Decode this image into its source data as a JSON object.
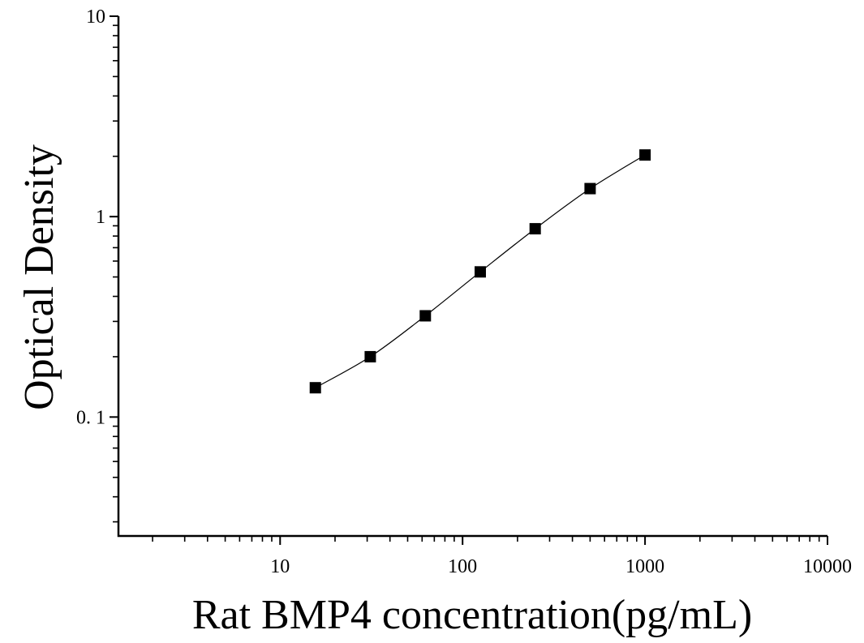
{
  "chart_data": {
    "type": "scatter",
    "title": "",
    "xlabel": "Rat BMP4 concentration(pg/mL)",
    "ylabel": "Optical Density",
    "x_scale": "log",
    "y_scale": "log",
    "xlim": [
      1.3,
      10000
    ],
    "ylim": [
      0.0255,
      10
    ],
    "x_ticks": [
      {
        "value": 10,
        "label": "10"
      },
      {
        "value": 100,
        "label": "100"
      },
      {
        "value": 1000,
        "label": "1000"
      },
      {
        "value": 10000,
        "label": "10000"
      }
    ],
    "y_ticks": [
      {
        "value": 0.1,
        "label": "0. 1"
      },
      {
        "value": 1,
        "label": "1"
      },
      {
        "value": 10,
        "label": "10"
      }
    ],
    "grid": false,
    "legend": "none",
    "series": [
      {
        "marker": "square",
        "color": "#000000",
        "fit_line": true,
        "x": [
          15.6,
          31.2,
          62.5,
          125,
          250,
          500,
          1000
        ],
        "y": [
          0.14,
          0.2,
          0.32,
          0.53,
          0.87,
          1.38,
          2.03
        ]
      }
    ]
  }
}
